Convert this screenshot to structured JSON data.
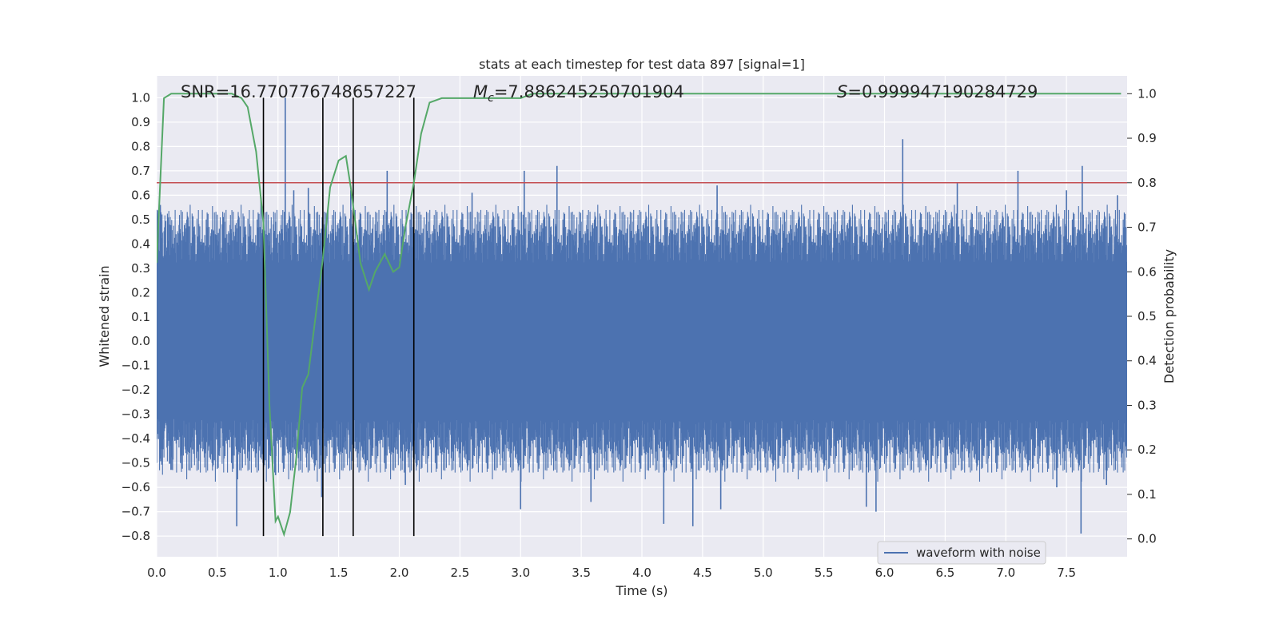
{
  "chart_data": {
    "type": "line",
    "title": "stats at each timestep for test data 897 [signal=1]",
    "xlabel": "Time (s)",
    "ylabel": "Whitened strain",
    "ylabel_right": "Detection probability",
    "xlim": [
      0.0,
      8.0
    ],
    "ylim": [
      -0.885,
      1.09
    ],
    "ylim_right": [
      -0.04,
      1.04
    ],
    "x_ticks": [
      0.0,
      0.5,
      1.0,
      1.5,
      2.0,
      2.5,
      3.0,
      3.5,
      4.0,
      4.5,
      5.0,
      5.5,
      6.0,
      6.5,
      7.0,
      7.5
    ],
    "x_tick_labels": [
      "0.0",
      "0.5",
      "1.0",
      "1.5",
      "2.0",
      "2.5",
      "3.0",
      "3.5",
      "4.0",
      "4.5",
      "5.0",
      "5.5",
      "6.0",
      "6.5",
      "7.0",
      "7.5"
    ],
    "y_ticks": [
      -0.8,
      -0.7,
      -0.6,
      -0.5,
      -0.4,
      -0.3,
      -0.2,
      -0.1,
      0.0,
      0.1,
      0.2,
      0.3,
      0.4,
      0.5,
      0.6,
      0.7,
      0.8,
      0.9,
      1.0
    ],
    "y_tick_labels": [
      "−0.8",
      "−0.7",
      "−0.6",
      "−0.5",
      "−0.4",
      "−0.3",
      "−0.2",
      "−0.1",
      "0.0",
      "0.1",
      "0.2",
      "0.3",
      "0.4",
      "0.5",
      "0.6",
      "0.7",
      "0.8",
      "0.9",
      "1.0"
    ],
    "y_right_ticks": [
      0.0,
      0.1,
      0.2,
      0.3,
      0.4,
      0.5,
      0.6,
      0.7,
      0.8,
      0.9,
      1.0
    ],
    "y_right_tick_labels": [
      "0.0",
      "0.1",
      "0.2",
      "0.3",
      "0.4",
      "0.5",
      "0.6",
      "0.7",
      "0.8",
      "0.9",
      "1.0"
    ],
    "grid": true,
    "annotations": {
      "snr": "SNR=16.770776748657227",
      "mc_symbol": "M",
      "mc_sub": "c",
      "mc_value": "=7.886245250701904",
      "s_symbol": "S",
      "s_value": "=0.999947190284729"
    },
    "threshold_right": 0.8,
    "vertical_lines_x": [
      0.88,
      1.37,
      1.62,
      2.12
    ],
    "vertical_lines_yrange": [
      -0.8,
      1.0
    ],
    "waveform": {
      "name": "waveform with noise",
      "color": "#4c72b0",
      "band_low": -0.27,
      "band_high": 0.28,
      "spike_up": [
        {
          "x": 0.03,
          "y": 0.56
        },
        {
          "x": 0.55,
          "y": 0.51
        },
        {
          "x": 0.86,
          "y": 0.59
        },
        {
          "x": 1.06,
          "y": 1.0
        },
        {
          "x": 1.13,
          "y": 0.62
        },
        {
          "x": 1.25,
          "y": 0.63
        },
        {
          "x": 1.6,
          "y": 0.62
        },
        {
          "x": 1.9,
          "y": 0.7
        },
        {
          "x": 2.6,
          "y": 0.61
        },
        {
          "x": 3.03,
          "y": 0.7
        },
        {
          "x": 3.3,
          "y": 0.72
        },
        {
          "x": 4.62,
          "y": 0.64
        },
        {
          "x": 6.15,
          "y": 0.83
        },
        {
          "x": 6.6,
          "y": 0.65
        },
        {
          "x": 7.1,
          "y": 0.7
        },
        {
          "x": 7.5,
          "y": 0.62
        },
        {
          "x": 7.63,
          "y": 0.72
        },
        {
          "x": 7.92,
          "y": 0.6
        }
      ],
      "spike_down": [
        {
          "x": 0.66,
          "y": -0.76
        },
        {
          "x": 0.98,
          "y": -0.55
        },
        {
          "x": 1.36,
          "y": -0.64
        },
        {
          "x": 2.05,
          "y": -0.59
        },
        {
          "x": 3.0,
          "y": -0.69
        },
        {
          "x": 3.58,
          "y": -0.66
        },
        {
          "x": 4.18,
          "y": -0.75
        },
        {
          "x": 4.42,
          "y": -0.76
        },
        {
          "x": 4.65,
          "y": -0.69
        },
        {
          "x": 5.85,
          "y": -0.68
        },
        {
          "x": 5.93,
          "y": -0.7
        },
        {
          "x": 7.42,
          "y": -0.6
        },
        {
          "x": 7.62,
          "y": -0.79
        },
        {
          "x": 7.83,
          "y": -0.59
        }
      ]
    },
    "probability": {
      "name": "detection probability",
      "color": "#55a868",
      "x": [
        0.0,
        0.06,
        0.12,
        0.2,
        0.35,
        0.5,
        0.62,
        0.7,
        0.75,
        0.82,
        0.88,
        0.93,
        0.98,
        1.0,
        1.05,
        1.1,
        1.15,
        1.2,
        1.25,
        1.31,
        1.37,
        1.43,
        1.5,
        1.56,
        1.6,
        1.68,
        1.75,
        1.8,
        1.88,
        1.95,
        2.0,
        2.05,
        2.12,
        2.18,
        2.25,
        2.35,
        2.5,
        2.7,
        2.9,
        3.0,
        3.1,
        3.5,
        4.0,
        4.5,
        5.0,
        5.5,
        6.0,
        6.5,
        7.0,
        7.5,
        7.95
      ],
      "y": [
        0.62,
        0.99,
        1.0,
        1.0,
        1.0,
        1.0,
        1.0,
        0.99,
        0.97,
        0.87,
        0.71,
        0.3,
        0.04,
        0.05,
        0.01,
        0.06,
        0.18,
        0.34,
        0.37,
        0.5,
        0.63,
        0.79,
        0.85,
        0.86,
        0.79,
        0.62,
        0.56,
        0.6,
        0.64,
        0.6,
        0.61,
        0.7,
        0.8,
        0.91,
        0.98,
        0.99,
        0.99,
        0.99,
        0.99,
        0.99,
        1.0,
        1.0,
        1.0,
        1.0,
        1.0,
        1.0,
        1.0,
        1.0,
        1.0,
        1.0,
        1.0
      ]
    },
    "threshold_color": "#c44e52",
    "vline_color": "#000000",
    "background_color": "#eaeaf2",
    "grid_color": "#ffffff",
    "legend_position": "lower-right"
  }
}
